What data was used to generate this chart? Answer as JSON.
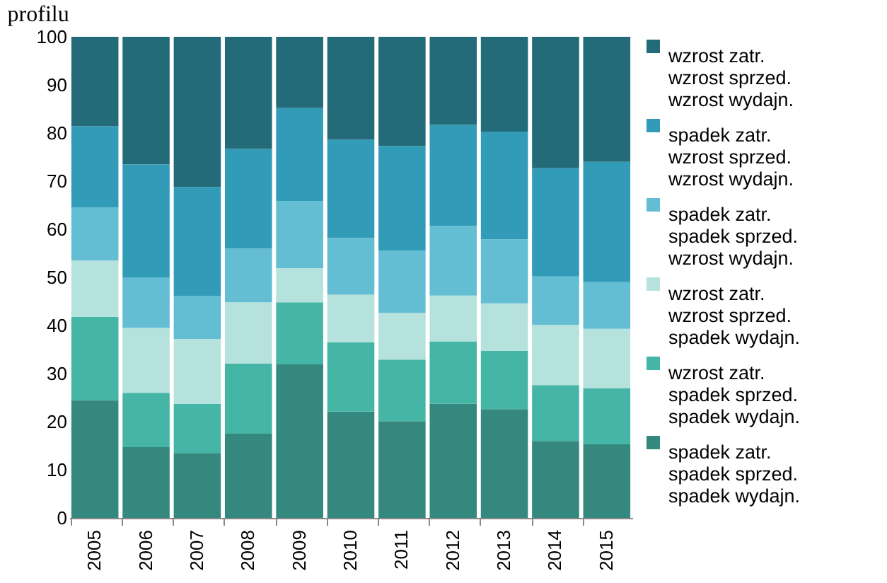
{
  "chart_data": {
    "type": "bar",
    "title": "profilu",
    "stacked": true,
    "legend": "right",
    "categories": [
      "2005",
      "2006",
      "2007",
      "2008",
      "2009",
      "2010",
      "2011",
      "2012",
      "2013",
      "2014",
      "2015"
    ],
    "ylim": [
      0,
      100
    ],
    "yticks": [
      0,
      10,
      20,
      30,
      40,
      50,
      60,
      70,
      80,
      90,
      100
    ],
    "series": [
      {
        "name": "spadek zatr.\nspadek sprzed.\nspadek wydajn.",
        "color": "#35887d",
        "values": [
          24.5,
          14.7,
          13.5,
          17.5,
          31.9,
          22.1,
          20.1,
          23.7,
          22.6,
          16,
          15.3
        ]
      },
      {
        "name": "wzrost zatr.\nspadek sprzed.\nspadek wydajn.",
        "color": "#45b5a5",
        "values": [
          17.3,
          11.3,
          10.2,
          14.6,
          12.9,
          14.4,
          12.8,
          13,
          12.1,
          11.6,
          11.7
        ]
      },
      {
        "name": "wzrost zatr.\nwzrost sprzed.\nspadek wydajn.",
        "color": "#b5e2dc",
        "values": [
          11.7,
          13.5,
          13.5,
          12.7,
          7.1,
          9.9,
          9.7,
          9.5,
          9.9,
          12.5,
          12.3
        ]
      },
      {
        "name": "spadek zatr.\nspadek sprzed.\nwzrost wydajn.",
        "color": "#63bdd3",
        "values": [
          11,
          10.5,
          8.9,
          11.2,
          14,
          11.8,
          13,
          14.5,
          13.3,
          10.1,
          9.7
        ]
      },
      {
        "name": "spadek zatr.\nwzrost sprzed.\nwzrost wydajn.",
        "color": "#329bb8",
        "values": [
          16.9,
          23.5,
          22.7,
          20.7,
          19.3,
          20.4,
          21.7,
          21,
          22.4,
          22.5,
          25
        ]
      },
      {
        "name": "wzrost zatr.\nwzrost sprzed.\nwzrost wydajn.",
        "color": "#236b79",
        "values": [
          18.6,
          26.5,
          31.2,
          23.3,
          14.8,
          21.4,
          22.7,
          18.3,
          19.7,
          27.3,
          26
        ]
      }
    ]
  }
}
